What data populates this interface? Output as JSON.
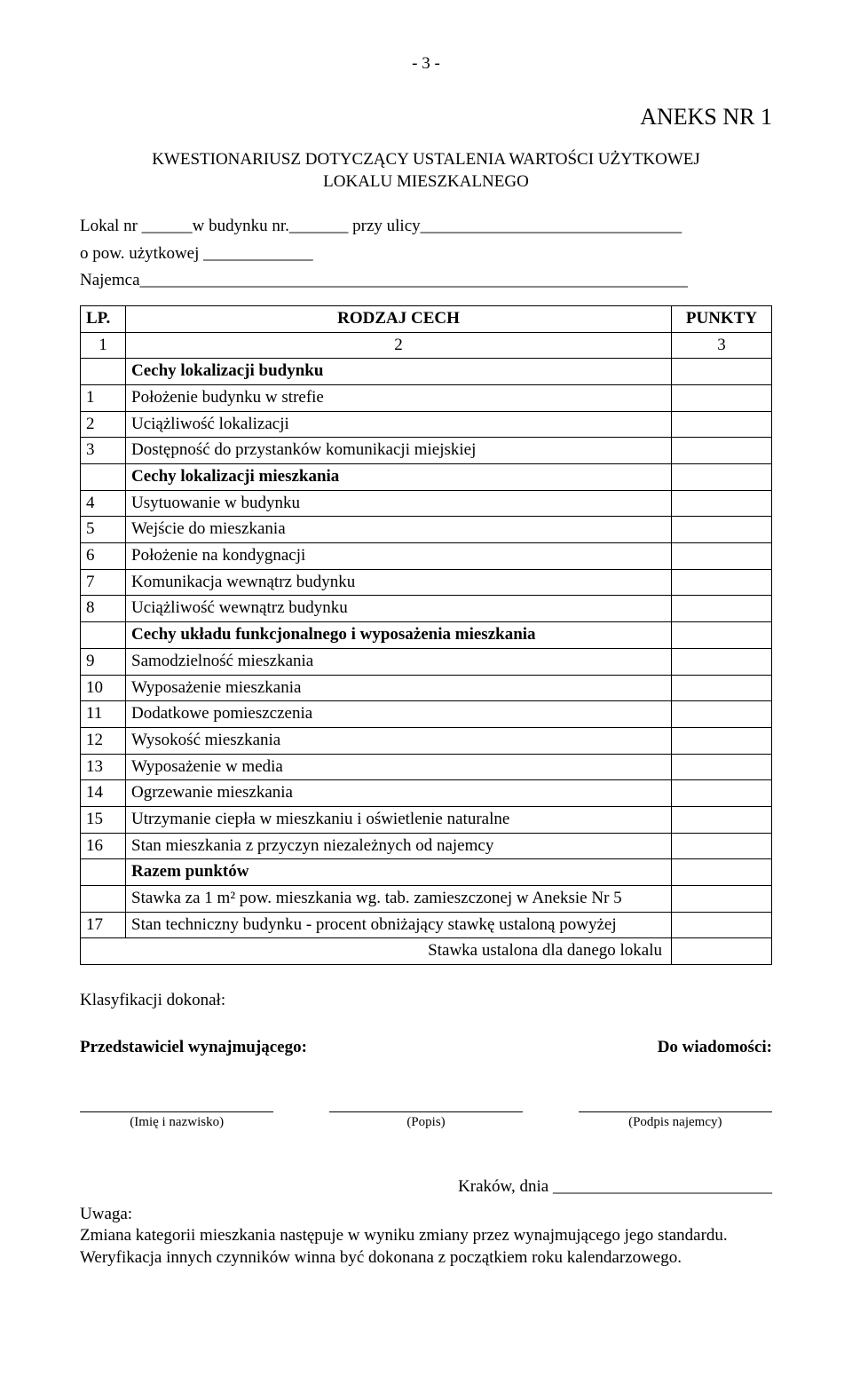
{
  "page_number": "- 3 -",
  "annex": "ANEKS NR 1",
  "title_line1": "KWESTIONARIUSZ DOTYCZĄCY USTALENIA WARTOŚCI UŻYTKOWEJ",
  "title_line2": "LOKALU MIESZKALNEGO",
  "form": {
    "lokal_label": "Lokal nr ______w budynku nr._______ przy ulicy_______________________________",
    "pow_label": "o pow. użytkowej _____________",
    "najemca_label": "Najemca_________________________________________________________________"
  },
  "table": {
    "head_lp": "LP.",
    "head_rodzaj": "RODZAJ CECH",
    "head_punkty": "PUNKTY",
    "subhead_1": "1",
    "subhead_2": "2",
    "subhead_3": "3",
    "rows": [
      {
        "num": "",
        "text": "Cechy lokalizacji budynku",
        "bold": true
      },
      {
        "num": "1",
        "text": "Położenie budynku w strefie"
      },
      {
        "num": "2",
        "text": "Uciążliwość lokalizacji"
      },
      {
        "num": "3",
        "text": "Dostępność do przystanków komunikacji miejskiej"
      },
      {
        "num": "",
        "text": "Cechy lokalizacji mieszkania",
        "bold": true
      },
      {
        "num": "4",
        "text": "Usytuowanie w budynku"
      },
      {
        "num": "5",
        "text": "Wejście do mieszkania"
      },
      {
        "num": "6",
        "text": "Położenie na kondygnacji"
      },
      {
        "num": "7",
        "text": "Komunikacja wewnątrz budynku"
      },
      {
        "num": "8",
        "text": "Uciążliwość wewnątrz budynku"
      },
      {
        "num": "",
        "text": "Cechy układu funkcjonalnego i wyposażenia mieszkania",
        "bold": true
      },
      {
        "num": "9",
        "text": "Samodzielność mieszkania"
      },
      {
        "num": "10",
        "text": "Wyposażenie mieszkania"
      },
      {
        "num": "11",
        "text": "Dodatkowe pomieszczenia"
      },
      {
        "num": "12",
        "text": "Wysokość mieszkania"
      },
      {
        "num": "13",
        "text": "Wyposażenie w media"
      },
      {
        "num": "14",
        "text": "Ogrzewanie mieszkania"
      },
      {
        "num": "15",
        "text": "Utrzymanie ciepła w mieszkaniu i oświetlenie naturalne"
      },
      {
        "num": "16",
        "text": "Stan mieszkania z przyczyn niezależnych od najemcy"
      },
      {
        "num": "",
        "text": "Razem punktów",
        "bold": true
      },
      {
        "num": "",
        "text": "Stawka za 1 m² pow. mieszkania wg. tab. zamieszczonej w Aneksie Nr 5"
      },
      {
        "num": "17",
        "text": "Stan techniczny budynku  - procent obniżający stawkę ustaloną powyżej"
      }
    ],
    "final_row": "Stawka ustalona dla danego lokalu"
  },
  "klasyfikacji": "Klasyfikacji dokonał:",
  "przedstawiciel": "Przedstawiciel wynajmującego:",
  "do_wiadomosci": "Do wiadomości:",
  "sig": {
    "left": "(Imię i nazwisko)",
    "center": "(Popis)",
    "right": "(Podpis najemcy)"
  },
  "date": "Kraków, dnia __________________________",
  "uwaga_label": "Uwaga:",
  "uwaga_text": "Zmiana kategorii mieszkania następuje  w  wyniku  zmiany przez wynajmującego jego standardu. Weryfikacja innych czynników  winna być dokonana z początkiem roku kalendarzowego."
}
